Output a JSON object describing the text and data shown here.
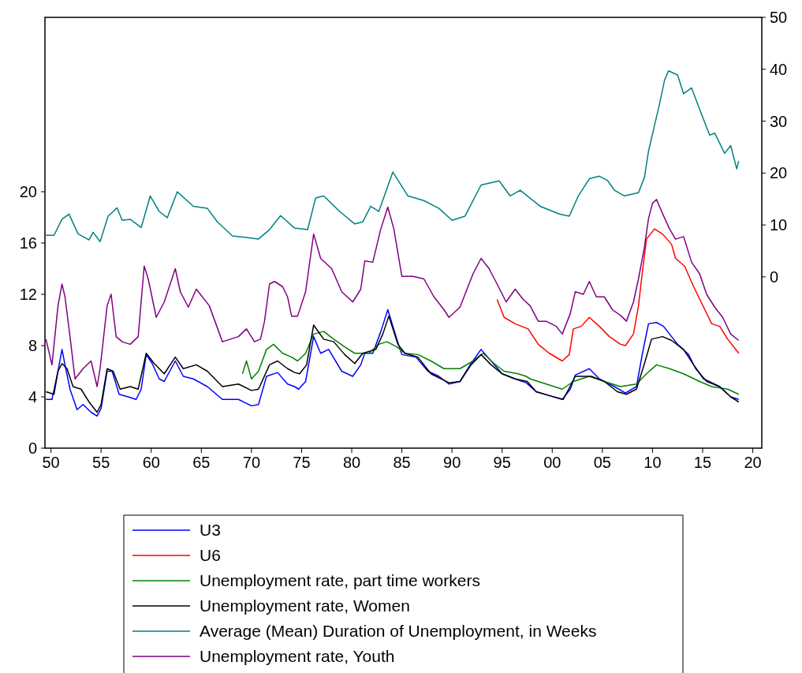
{
  "chart_data": {
    "type": "line",
    "xlim": [
      1949.4,
      2020.9
    ],
    "xticks": [
      {
        "value": 1950,
        "label": "50"
      },
      {
        "value": 1955,
        "label": "55"
      },
      {
        "value": 1960,
        "label": "60"
      },
      {
        "value": 1965,
        "label": "65"
      },
      {
        "value": 1970,
        "label": "70"
      },
      {
        "value": 1975,
        "label": "75"
      },
      {
        "value": 1980,
        "label": "80"
      },
      {
        "value": 1985,
        "label": "85"
      },
      {
        "value": 1990,
        "label": "90"
      },
      {
        "value": 1995,
        "label": "95"
      },
      {
        "value": 2000,
        "label": "00"
      },
      {
        "value": 2005,
        "label": "05"
      },
      {
        "value": 2010,
        "label": "10"
      },
      {
        "value": 2015,
        "label": "15"
      },
      {
        "value": 2020,
        "label": "20"
      }
    ],
    "ylim": [
      0,
      33.6
    ],
    "yticks": [
      0,
      4,
      8,
      12,
      16,
      20
    ],
    "y2lim": [
      -33,
      50
    ],
    "y2ticks": [
      0,
      10,
      20,
      30,
      40,
      50
    ],
    "grid": false,
    "legend": "bottom",
    "series": [
      {
        "name": "U3",
        "color": "#0000ff",
        "x": [
          1949.5,
          1950.1,
          1950.7,
          1951.1,
          1951.4,
          1951.9,
          1952.6,
          1953.2,
          1954.0,
          1954.6,
          1955.0,
          1955.6,
          1956.1,
          1956.8,
          1957.7,
          1958.5,
          1959.0,
          1959.5,
          1960.1,
          1960.8,
          1961.3,
          1962.4,
          1963.2,
          1964.2,
          1965.6,
          1967.1,
          1968.7,
          1970.0,
          1970.7,
          1971.5,
          1972.6,
          1973.6,
          1974.3,
          1974.7,
          1975.4,
          1976.2,
          1976.9,
          1977.7,
          1979.0,
          1980.1,
          1980.9,
          1981.3,
          1982.1,
          1982.9,
          1983.6,
          1984.5,
          1985.0,
          1986.4,
          1987.6,
          1988.7,
          1989.7,
          1990.8,
          1991.9,
          1992.9,
          1993.9,
          1995.0,
          1996.3,
          1997.4,
          1998.4,
          1999.7,
          2001.0,
          2001.8,
          2002.3,
          2003.7,
          2004.7,
          2006.2,
          2007.3,
          2008.4,
          2009.0,
          2009.6,
          2010.4,
          2011.1,
          2011.7,
          2012.5,
          2013.6,
          2014.3,
          2015.4,
          2016.7,
          2017.8,
          2018.6
        ],
        "values": [
          3.8,
          3.8,
          6.0,
          7.7,
          6.5,
          4.6,
          3.0,
          3.4,
          2.8,
          2.5,
          3.1,
          6.0,
          6.0,
          4.2,
          4.0,
          3.8,
          4.6,
          7.3,
          6.6,
          5.4,
          5.2,
          6.8,
          5.6,
          5.4,
          4.8,
          3.8,
          3.8,
          3.3,
          3.4,
          5.6,
          5.9,
          5.0,
          4.8,
          4.6,
          5.2,
          8.7,
          7.4,
          7.7,
          6.0,
          5.6,
          6.5,
          7.4,
          7.4,
          9.1,
          10.8,
          8.5,
          7.3,
          7.1,
          6.0,
          5.6,
          5.0,
          5.2,
          6.6,
          7.7,
          6.8,
          5.8,
          5.4,
          5.1,
          4.4,
          4.1,
          3.8,
          4.6,
          5.7,
          6.2,
          5.4,
          4.8,
          4.3,
          4.8,
          7.4,
          9.7,
          9.8,
          9.5,
          8.9,
          8.1,
          7.3,
          6.2,
          5.2,
          4.8,
          4.0,
          3.8
        ]
      },
      {
        "name": "U6",
        "color": "#ff0000",
        "x": [
          1994.5,
          1995.2,
          1996.3,
          1997.6,
          1998.6,
          1999.7,
          2001.0,
          2001.7,
          2002.1,
          2002.9,
          2003.7,
          2004.7,
          2005.7,
          2006.8,
          2007.3,
          2008.1,
          2008.6,
          2009.0,
          2009.4,
          2010.2,
          2011.0,
          2011.9,
          2012.3,
          2013.2,
          2014.1,
          2015.1,
          2015.9,
          2016.7,
          2017.5,
          2018.6
        ],
        "values": [
          11.6,
          10.2,
          9.7,
          9.3,
          8.1,
          7.4,
          6.8,
          7.3,
          9.3,
          9.5,
          10.2,
          9.5,
          8.7,
          8.1,
          8.0,
          8.9,
          11.1,
          13.8,
          16.3,
          17.1,
          16.7,
          15.9,
          14.8,
          14.2,
          12.6,
          11.0,
          9.7,
          9.5,
          8.5,
          7.4
        ]
      },
      {
        "name": "Unemployment rate, part time workers",
        "color": "#008000",
        "x": [
          1969.1,
          1969.5,
          1970.0,
          1970.7,
          1971.5,
          1972.2,
          1973.1,
          1974.0,
          1974.6,
          1975.4,
          1976.2,
          1977.2,
          1978.2,
          1979.3,
          1980.3,
          1981.7,
          1982.7,
          1983.5,
          1984.5,
          1985.3,
          1986.6,
          1987.9,
          1989.2,
          1990.8,
          1992.1,
          1993.1,
          1994.2,
          1995.2,
          1996.6,
          1997.4,
          1997.8,
          1999.4,
          2001.0,
          2002.1,
          2003.7,
          2005.2,
          2006.8,
          2008.4,
          2009.4,
          2010.4,
          2011.7,
          2013.1,
          2014.7,
          2015.9,
          2017.5,
          2018.6
        ],
        "values": [
          5.8,
          6.8,
          5.4,
          6.0,
          7.7,
          8.1,
          7.4,
          7.1,
          6.8,
          7.4,
          8.9,
          9.1,
          8.5,
          7.9,
          7.4,
          7.4,
          8.1,
          8.3,
          7.9,
          7.4,
          7.3,
          6.8,
          6.2,
          6.2,
          6.8,
          7.4,
          6.6,
          6.0,
          5.8,
          5.6,
          5.4,
          5.0,
          4.6,
          5.2,
          5.6,
          5.2,
          4.8,
          5.0,
          5.8,
          6.5,
          6.2,
          5.8,
          5.2,
          4.8,
          4.6,
          4.2
        ]
      },
      {
        "name": "Unemployment rate, Women",
        "color": "#000000",
        "x": [
          1949.5,
          1950.3,
          1950.7,
          1951.1,
          1951.6,
          1952.2,
          1953.0,
          1953.8,
          1954.6,
          1955.0,
          1955.6,
          1956.2,
          1956.9,
          1957.9,
          1958.7,
          1959.5,
          1960.3,
          1961.3,
          1962.4,
          1963.2,
          1964.5,
          1965.6,
          1967.1,
          1968.7,
          1970.0,
          1970.7,
          1971.8,
          1972.6,
          1973.6,
          1974.3,
          1974.8,
          1975.5,
          1976.2,
          1977.2,
          1978.2,
          1979.3,
          1980.3,
          1981.1,
          1982.4,
          1983.1,
          1983.7,
          1984.6,
          1985.3,
          1986.6,
          1987.9,
          1989.7,
          1990.8,
          1991.9,
          1992.9,
          1993.9,
          1995.0,
          1996.3,
          1997.5,
          1998.4,
          1999.7,
          2001.1,
          2002.3,
          2003.9,
          2005.2,
          2006.5,
          2007.4,
          2008.4,
          2009.2,
          2009.9,
          2011.0,
          2011.9,
          2013.1,
          2014.1,
          2015.1,
          2016.7,
          2017.8,
          2018.6
        ],
        "values": [
          4.4,
          4.2,
          6.0,
          6.6,
          6.2,
          4.8,
          4.6,
          3.6,
          2.8,
          3.4,
          6.2,
          6.0,
          4.6,
          4.8,
          4.6,
          7.4,
          6.6,
          5.8,
          7.1,
          6.2,
          6.5,
          6.0,
          4.8,
          5.0,
          4.5,
          4.6,
          6.5,
          6.8,
          6.2,
          5.9,
          5.8,
          6.5,
          9.6,
          8.5,
          8.3,
          7.3,
          6.6,
          7.4,
          7.7,
          8.9,
          10.3,
          8.1,
          7.4,
          7.1,
          5.8,
          5.1,
          5.2,
          6.5,
          7.3,
          6.5,
          5.8,
          5.4,
          5.2,
          4.4,
          4.1,
          3.8,
          5.6,
          5.6,
          5.2,
          4.4,
          4.2,
          4.6,
          6.6,
          8.5,
          8.7,
          8.4,
          7.7,
          6.5,
          5.4,
          4.8,
          4.0,
          3.6
        ]
      },
      {
        "name": "Average (Mean) Duration of Unemployment, in Weeks",
        "color": "#008080",
        "axis": "y2",
        "x": [
          1949.5,
          1950.3,
          1951.1,
          1951.8,
          1952.7,
          1953.8,
          1954.2,
          1954.9,
          1955.7,
          1956.6,
          1957.1,
          1957.9,
          1959.0,
          1959.9,
          1960.8,
          1961.6,
          1962.6,
          1964.2,
          1965.6,
          1966.6,
          1968.1,
          1969.5,
          1970.7,
          1971.8,
          1972.9,
          1974.3,
          1975.6,
          1976.4,
          1977.2,
          1978.8,
          1980.3,
          1981.1,
          1981.9,
          1982.7,
          1984.1,
          1985.6,
          1987.2,
          1988.7,
          1990.0,
          1991.3,
          1992.9,
          1994.7,
          1995.8,
          1996.8,
          1998.8,
          2000.7,
          2001.7,
          2002.6,
          2003.7,
          2004.7,
          2005.5,
          2006.2,
          2007.2,
          2008.6,
          2009.2,
          2009.6,
          2010.2,
          2010.7,
          2011.2,
          2011.6,
          2012.5,
          2013.1,
          2013.9,
          2014.7,
          2015.7,
          2016.2,
          2017.2,
          2017.8,
          2018.4,
          2018.6
        ],
        "values": [
          8.0,
          8.0,
          11.1,
          12.1,
          8.3,
          7.1,
          8.6,
          6.8,
          11.7,
          13.3,
          10.9,
          11.1,
          9.5,
          15.6,
          12.6,
          11.4,
          16.4,
          13.6,
          13.2,
          10.6,
          7.9,
          7.6,
          7.3,
          9.1,
          11.8,
          9.4,
          9.1,
          15.2,
          15.6,
          12.6,
          10.2,
          10.6,
          13.6,
          12.6,
          20.2,
          15.6,
          14.7,
          13.2,
          10.9,
          11.7,
          17.7,
          18.5,
          15.6,
          16.7,
          13.6,
          12.1,
          11.7,
          15.6,
          18.9,
          19.4,
          18.6,
          16.7,
          15.6,
          16.2,
          19.2,
          24.2,
          29.2,
          33.3,
          37.9,
          39.7,
          38.9,
          35.3,
          36.4,
          32.3,
          27.3,
          27.7,
          23.8,
          25.3,
          20.8,
          22.3
        ]
      },
      {
        "name": "Unemployment rate, Youth",
        "color": "#800080",
        "x": [
          1949.5,
          1950.1,
          1950.7,
          1951.1,
          1951.4,
          1951.9,
          1952.4,
          1953.2,
          1954.0,
          1954.6,
          1954.9,
          1955.6,
          1956.0,
          1956.5,
          1957.1,
          1957.9,
          1958.7,
          1959.3,
          1959.7,
          1960.5,
          1961.3,
          1962.4,
          1962.9,
          1963.7,
          1964.5,
          1965.8,
          1967.1,
          1968.7,
          1969.5,
          1970.3,
          1970.9,
          1971.3,
          1971.8,
          1972.3,
          1973.1,
          1973.6,
          1974.0,
          1974.6,
          1975.4,
          1976.2,
          1976.9,
          1978.0,
          1979.0,
          1980.1,
          1980.9,
          1981.3,
          1982.1,
          1982.9,
          1983.6,
          1984.2,
          1985.0,
          1986.1,
          1987.2,
          1988.2,
          1989.2,
          1989.7,
          1990.8,
          1991.3,
          1992.1,
          1992.9,
          1993.7,
          1994.5,
          1995.4,
          1996.3,
          1997.1,
          1997.8,
          1998.6,
          1999.4,
          2000.4,
          2001.0,
          2001.8,
          2002.3,
          2003.1,
          2003.7,
          2004.4,
          2005.2,
          2006.0,
          2006.9,
          2007.4,
          2008.1,
          2008.6,
          2009.2,
          2009.6,
          2010.0,
          2010.4,
          2011.0,
          2011.7,
          2012.3,
          2013.1,
          2013.9,
          2014.7,
          2015.4,
          2016.2,
          2017.0,
          2017.8,
          2018.6
        ],
        "values": [
          8.5,
          6.5,
          11.1,
          12.8,
          11.8,
          8.7,
          5.4,
          6.2,
          6.8,
          4.8,
          6.2,
          11.1,
          12.0,
          8.7,
          8.3,
          8.1,
          8.7,
          14.2,
          13.2,
          10.2,
          11.4,
          14.0,
          12.2,
          11.0,
          12.4,
          11.1,
          8.3,
          8.7,
          9.3,
          8.3,
          8.5,
          9.9,
          12.8,
          13.0,
          12.6,
          11.8,
          10.3,
          10.3,
          12.2,
          16.7,
          14.8,
          14.0,
          12.2,
          11.4,
          12.4,
          14.6,
          14.5,
          17.1,
          18.8,
          17.1,
          13.4,
          13.4,
          13.2,
          11.8,
          10.8,
          10.2,
          11.0,
          12.0,
          13.6,
          14.8,
          14.0,
          12.8,
          11.4,
          12.4,
          11.6,
          11.1,
          9.9,
          9.9,
          9.5,
          8.9,
          10.5,
          12.2,
          12.0,
          13.0,
          11.8,
          11.8,
          10.8,
          10.3,
          9.9,
          11.4,
          13.2,
          15.7,
          17.9,
          19.1,
          19.4,
          18.3,
          17.1,
          16.3,
          16.5,
          14.5,
          13.6,
          12.0,
          11.0,
          10.2,
          8.9,
          8.4
        ]
      }
    ]
  }
}
